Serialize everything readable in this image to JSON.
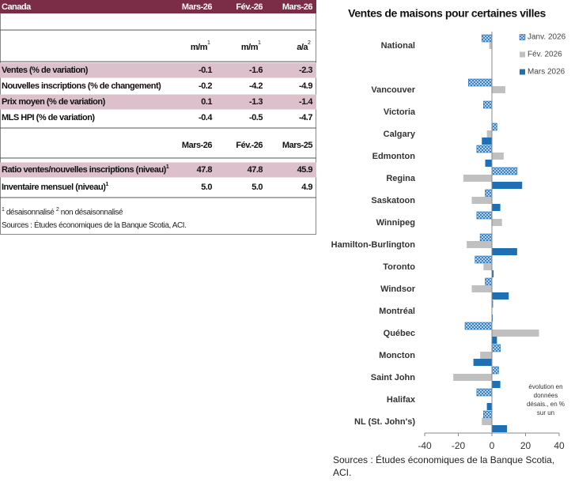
{
  "table": {
    "header": [
      "Canada",
      "Mars-26",
      "Fév.-26",
      "Mars-26"
    ],
    "units": [
      {
        "text": "m/m",
        "sup": "1"
      },
      {
        "text": "m/m",
        "sup": "1"
      },
      {
        "text": "a/a",
        "sup": "2"
      }
    ],
    "rows": [
      {
        "label": "Ventes (% de variation)",
        "cells": [
          "-0.1",
          "-1.6",
          "-2.3"
        ],
        "shaded": true
      },
      {
        "label": "Nouvelles inscriptions (% de changement)",
        "cells": [
          "-0.2",
          "-4.2",
          "-4.9"
        ],
        "shaded": false
      },
      {
        "label": "Prix moyen (% de variation)",
        "cells": [
          "0.1",
          "-1.3",
          "-1.4"
        ],
        "shaded": true
      },
      {
        "label": "MLS HPI (% de variation)",
        "cells": [
          "-0.4",
          "-0.5",
          "-4.7"
        ],
        "shaded": false
      }
    ],
    "header2": [
      "Mars-26",
      "Fév.-26",
      "Mars-25"
    ],
    "rows2": [
      {
        "label": "Ratio ventes/nouvelles inscriptions (niveau)",
        "sup": "1",
        "cells": [
          "47.8",
          "47.8",
          "45.9"
        ],
        "shaded": true
      },
      {
        "label": "Inventaire mensuel (niveau)",
        "sup": "1",
        "cells": [
          "5.0",
          "5.0",
          "4.9"
        ],
        "shaded": false
      }
    ],
    "footnotes": [
      {
        "sup": "1",
        "text": "désaisonnalisé"
      },
      {
        "sup": "2",
        "text": "non désaisonnalisé"
      }
    ],
    "source": "Sources : Études économiques de la Banque Scotia, ACI."
  },
  "chart_data": {
    "type": "bar",
    "orientation": "horizontal",
    "title": "Ventes de maisons pour certaines villes",
    "categories": [
      "National",
      "Vancouver",
      "Victoria",
      "Calgary",
      "Edmonton",
      "Regina",
      "Saskatoon",
      "Winnipeg",
      "Hamilton-Burlington",
      "Toronto",
      "Windsor",
      "Montréal",
      "Québec",
      "Moncton",
      "Saint John",
      "Halifax",
      "NL (St. John's)"
    ],
    "series": [
      {
        "name": "Janv. 2026",
        "color": "#1f6fb5",
        "pattern": "hatch",
        "values": [
          -6,
          -14,
          -5,
          3,
          -9,
          15,
          -4,
          -9,
          -7,
          -10,
          -4,
          0.5,
          -16,
          5,
          4,
          -9,
          -5
        ]
      },
      {
        "name": "Fév. 2026",
        "color": "#c0c0c0",
        "values": [
          -1.6,
          8,
          0,
          -3,
          7,
          -17,
          -12,
          6,
          -15,
          -5,
          -12,
          0,
          28,
          -7,
          -23,
          0,
          -6
        ]
      },
      {
        "name": "Mars 2026",
        "color": "#1f6fb5",
        "values": [
          -0.1,
          0,
          0,
          -6,
          -4,
          18,
          5,
          0,
          15,
          1,
          10,
          0.5,
          3,
          -11,
          5,
          -3,
          9
        ]
      }
    ],
    "xlim": [
      -40,
      40
    ],
    "xticks": [
      -40,
      -20,
      0,
      20,
      40
    ],
    "legend": "upper right",
    "annotation": "évolution en données désais., en % sur un",
    "source": "Sources : Études économiques de la Banque Scotia, ACI."
  }
}
